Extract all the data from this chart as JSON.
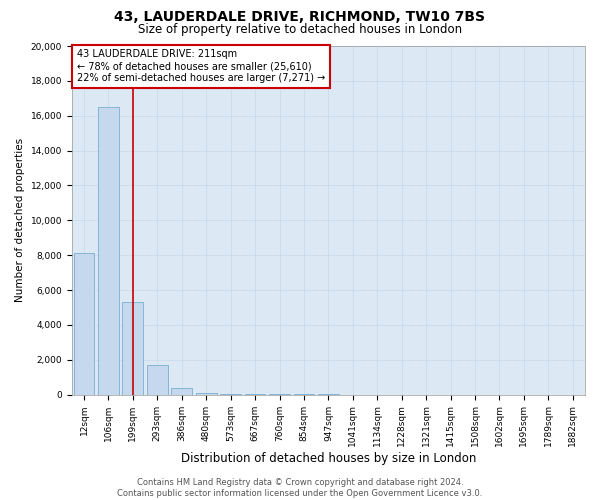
{
  "title": "43, LAUDERDALE DRIVE, RICHMOND, TW10 7BS",
  "subtitle": "Size of property relative to detached houses in London",
  "xlabel": "Distribution of detached houses by size in London",
  "ylabel": "Number of detached properties",
  "categories": [
    "12sqm",
    "106sqm",
    "199sqm",
    "293sqm",
    "386sqm",
    "480sqm",
    "573sqm",
    "667sqm",
    "760sqm",
    "854sqm",
    "947sqm",
    "1041sqm",
    "1134sqm",
    "1228sqm",
    "1321sqm",
    "1415sqm",
    "1508sqm",
    "1602sqm",
    "1695sqm",
    "1789sqm",
    "1882sqm"
  ],
  "values": [
    8100,
    16500,
    5300,
    1700,
    350,
    100,
    55,
    30,
    18,
    10,
    6,
    4,
    3,
    2,
    2,
    1,
    1,
    1,
    1,
    1,
    1
  ],
  "bar_color": "#c5d8ed",
  "bar_edge_color": "#7aaed0",
  "vline_x_index": 2,
  "vline_color": "#cc0000",
  "ylim": [
    0,
    20000
  ],
  "yticks": [
    0,
    2000,
    4000,
    6000,
    8000,
    10000,
    12000,
    14000,
    16000,
    18000,
    20000
  ],
  "annotation_text": "43 LAUDERDALE DRIVE: 211sqm\n← 78% of detached houses are smaller (25,610)\n22% of semi-detached houses are larger (7,271) →",
  "annotation_box_facecolor": "#ffffff",
  "annotation_box_edge_color": "#cc0000",
  "grid_color": "#c8d8e8",
  "fig_bg_color": "#ffffff",
  "plot_bg_color": "#dce9f5",
  "footer1": "Contains HM Land Registry data © Crown copyright and database right 2024.",
  "footer2": "Contains public sector information licensed under the Open Government Licence v3.0.",
  "title_fontsize": 10,
  "subtitle_fontsize": 8.5,
  "xlabel_fontsize": 8.5,
  "ylabel_fontsize": 7.5,
  "tick_fontsize": 6.5,
  "annotation_fontsize": 7,
  "footer_fontsize": 6
}
